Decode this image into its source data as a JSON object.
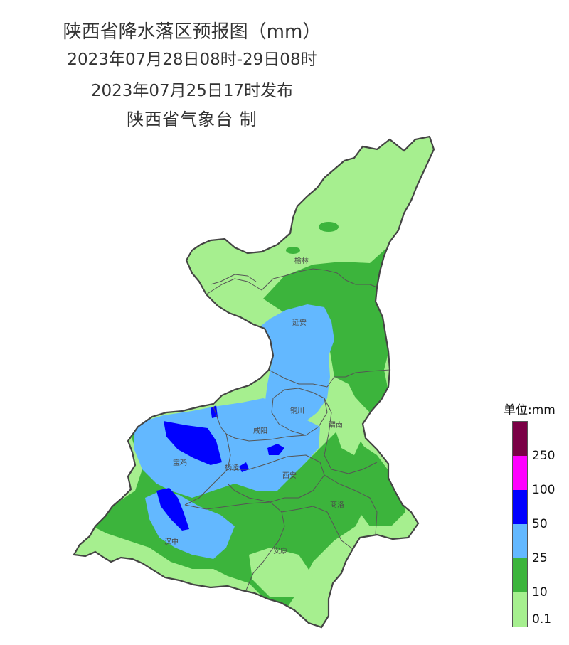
{
  "titles": {
    "line1": "陕西省降水落区预报图（mm）",
    "line2": "2023年07月28日08时-29日08时",
    "line3": "2023年07月25日17时发布",
    "line4": "陕西省气象台 制"
  },
  "cities": {
    "yulin": "榆林",
    "yanan": "延安",
    "tongchuan": "铜川",
    "weinan": "渭南",
    "xianyang": "咸阳",
    "baoji": "宝鸡",
    "yangling": "杨凌",
    "xian": "西安",
    "shangluo": "商洛",
    "hanzhong": "汉中",
    "ankang": "安康"
  },
  "legend": {
    "title": "单位:mm",
    "ticks": [
      "250",
      "100",
      "50",
      "25",
      "10",
      "0.1"
    ],
    "colors": {
      "over_250": "#7a0045",
      "100_250": "#ff00ff",
      "50_100": "#0000ff",
      "25_50": "#63b8ff",
      "10_25": "#3cb43c",
      "0.1_10": "#a6ef8f"
    }
  }
}
